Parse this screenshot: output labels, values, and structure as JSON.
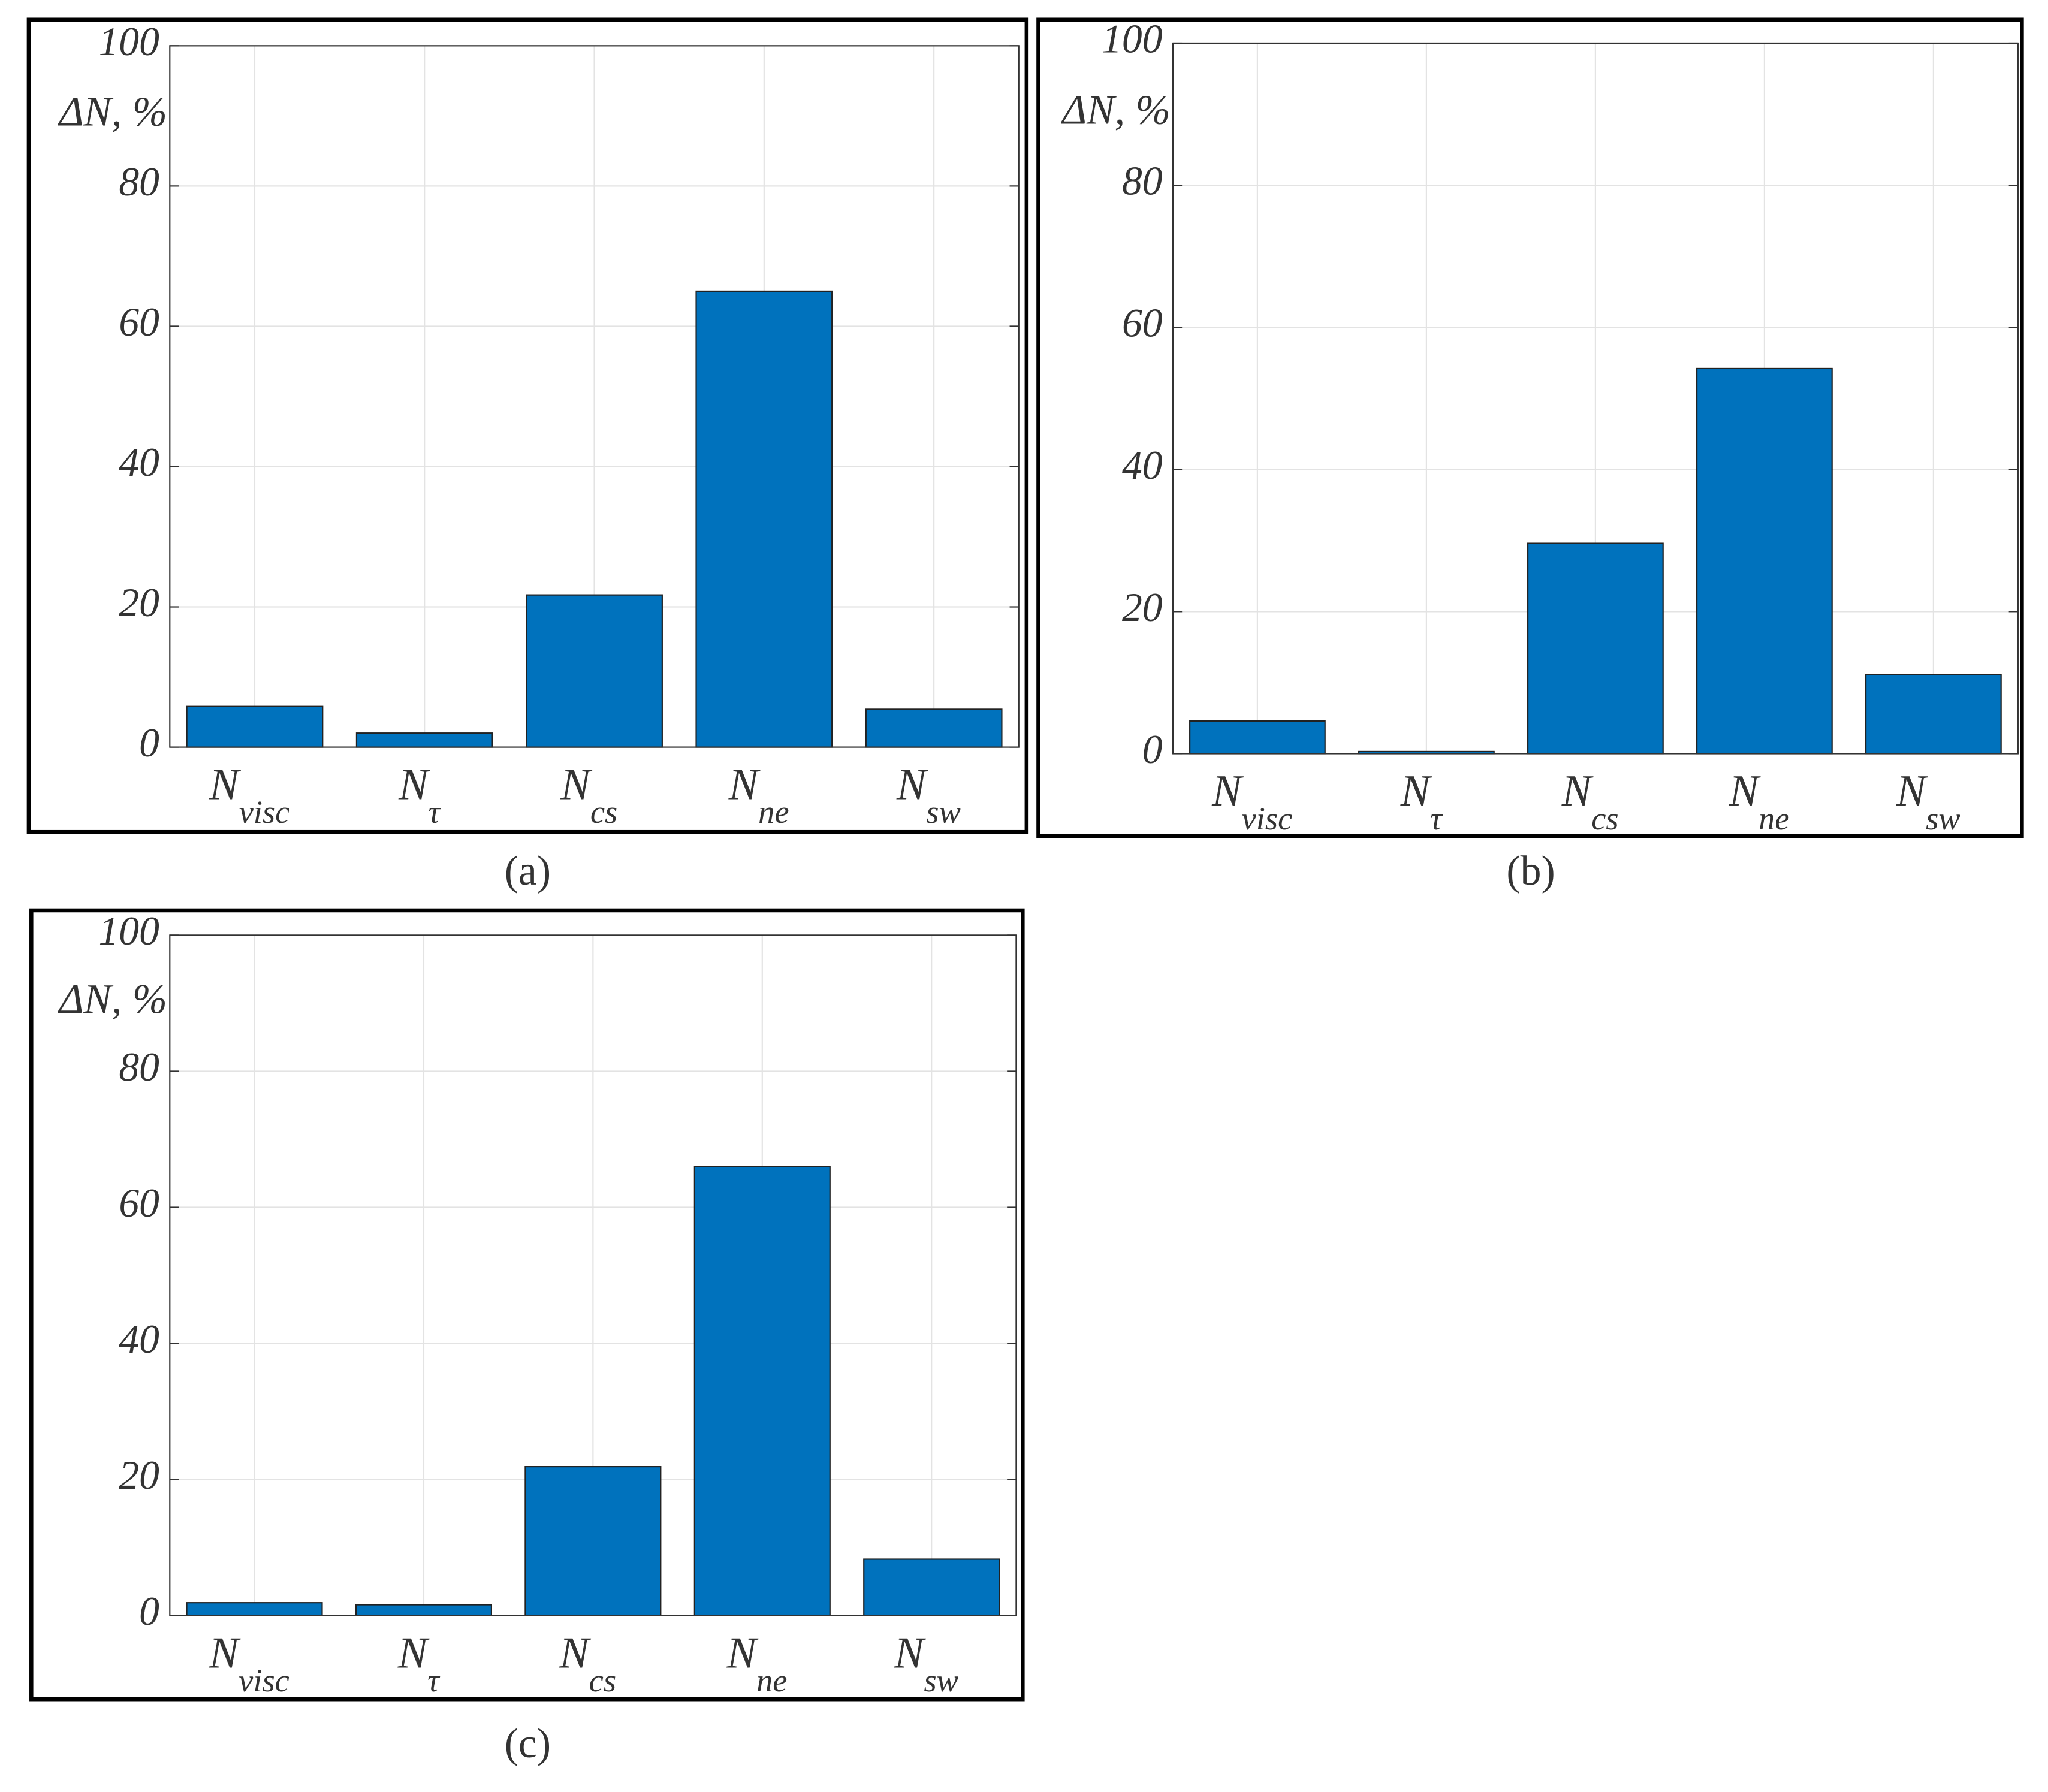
{
  "chart_data": [
    {
      "type": "bar",
      "panel_label": "(a)",
      "ylabel": "ΔN, %",
      "color": "#0072bd",
      "grid": true,
      "categories": [
        {
          "main": "N",
          "sub": "visc"
        },
        {
          "main": "N",
          "sub": "τ"
        },
        {
          "main": "N",
          "sub": "cs"
        },
        {
          "main": "N",
          "sub": "ne"
        },
        {
          "main": "N",
          "sub": "sw"
        }
      ],
      "values": [
        5.8,
        2.0,
        21.7,
        65.0,
        5.4
      ],
      "ylim": [
        0,
        100
      ],
      "yticks": [
        0,
        20,
        40,
        60,
        80,
        100
      ]
    },
    {
      "type": "bar",
      "panel_label": "(b)",
      "ylabel": "ΔN, %",
      "color": "#0072bd",
      "grid": true,
      "categories": [
        {
          "main": "N",
          "sub": "visc"
        },
        {
          "main": "N",
          "sub": "τ"
        },
        {
          "main": "N",
          "sub": "cs"
        },
        {
          "main": "N",
          "sub": "ne"
        },
        {
          "main": "N",
          "sub": "sw"
        }
      ],
      "values": [
        4.6,
        0.3,
        29.6,
        54.2,
        11.1
      ],
      "ylim": [
        0,
        100
      ],
      "yticks": [
        0,
        20,
        40,
        60,
        80,
        100
      ]
    },
    {
      "type": "bar",
      "panel_label": "(c)",
      "ylabel": "ΔN, %",
      "color": "#0072bd",
      "grid": true,
      "categories": [
        {
          "main": "N",
          "sub": "visc"
        },
        {
          "main": "N",
          "sub": "τ"
        },
        {
          "main": "N",
          "sub": "cs"
        },
        {
          "main": "N",
          "sub": "ne"
        },
        {
          "main": "N",
          "sub": "sw"
        }
      ],
      "values": [
        1.9,
        1.6,
        21.9,
        66.0,
        8.3
      ],
      "ylim": [
        0,
        100
      ],
      "yticks": [
        0,
        20,
        40,
        60,
        80,
        100
      ]
    }
  ]
}
